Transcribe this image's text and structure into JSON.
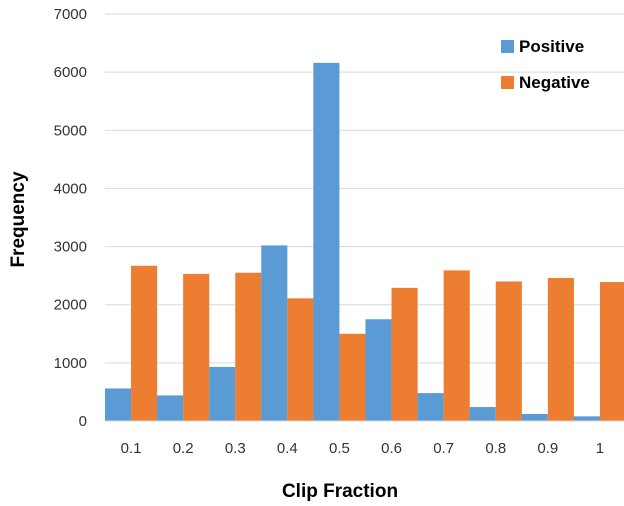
{
  "chart_data": {
    "type": "bar",
    "xlabel": "Clip Fraction",
    "ylabel": "Frequency",
    "categories": [
      "0.1",
      "0.2",
      "0.3",
      "0.4",
      "0.5",
      "0.6",
      "0.7",
      "0.8",
      "0.9",
      "1"
    ],
    "series": [
      {
        "name": "Positive",
        "color": "#5B9BD5",
        "values": [
          560,
          440,
          930,
          3020,
          6160,
          1750,
          480,
          240,
          120,
          80
        ]
      },
      {
        "name": "Negative",
        "color": "#ED7D31",
        "values": [
          2670,
          2530,
          2550,
          2110,
          1500,
          2290,
          2590,
          2400,
          2460,
          2390
        ]
      }
    ],
    "ylim": [
      0,
      7000
    ],
    "yticks": [
      0,
      1000,
      2000,
      3000,
      4000,
      5000,
      6000,
      7000
    ],
    "grid": true,
    "legend_position": "top-right"
  }
}
